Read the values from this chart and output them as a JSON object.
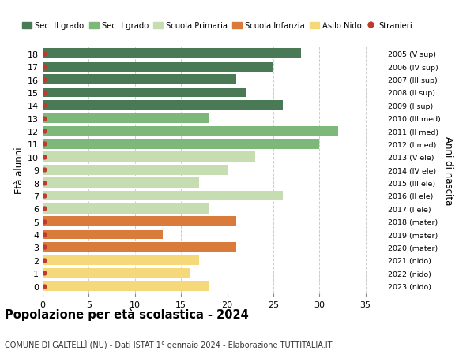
{
  "ages": [
    18,
    17,
    16,
    15,
    14,
    13,
    12,
    11,
    10,
    9,
    8,
    7,
    6,
    5,
    4,
    3,
    2,
    1,
    0
  ],
  "values": [
    28,
    25,
    21,
    22,
    26,
    18,
    32,
    30,
    23,
    20,
    17,
    26,
    18,
    21,
    13,
    21,
    17,
    16,
    18
  ],
  "right_labels": [
    "2005 (V sup)",
    "2006 (IV sup)",
    "2007 (III sup)",
    "2008 (II sup)",
    "2009 (I sup)",
    "2010 (III med)",
    "2011 (II med)",
    "2012 (I med)",
    "2013 (V ele)",
    "2014 (IV ele)",
    "2015 (III ele)",
    "2016 (II ele)",
    "2017 (I ele)",
    "2018 (mater)",
    "2019 (mater)",
    "2020 (mater)",
    "2021 (nido)",
    "2022 (nido)",
    "2023 (nido)"
  ],
  "bar_colors": [
    "#4a7a55",
    "#4a7a55",
    "#4a7a55",
    "#4a7a55",
    "#4a7a55",
    "#7db87a",
    "#7db87a",
    "#7db87a",
    "#c5ddb0",
    "#c5ddb0",
    "#c5ddb0",
    "#c5ddb0",
    "#c5ddb0",
    "#d97b3a",
    "#d97b3a",
    "#d97b3a",
    "#f5d87a",
    "#f5d87a",
    "#f5d87a"
  ],
  "legend_labels": [
    "Sec. II grado",
    "Sec. I grado",
    "Scuola Primaria",
    "Scuola Infanzia",
    "Asilo Nido",
    "Stranieri"
  ],
  "legend_colors": [
    "#4a7a55",
    "#7db87a",
    "#c5ddb0",
    "#d97b3a",
    "#f5d87a",
    "#c0392b"
  ],
  "stranieri_dot_color": "#c0392b",
  "ylabel": "Età alunni",
  "right_ylabel": "Anni di nascita",
  "title": "Popolazione per età scolastica - 2024",
  "subtitle": "COMUNE DI GALTELLÌ (NU) - Dati ISTAT 1° gennaio 2024 - Elaborazione TUTTITALIA.IT",
  "xlim": [
    0,
    37
  ],
  "xticks": [
    0,
    5,
    10,
    15,
    20,
    25,
    30,
    35
  ],
  "background_color": "#ffffff",
  "grid_color": "#cccccc",
  "bar_height": 0.78
}
